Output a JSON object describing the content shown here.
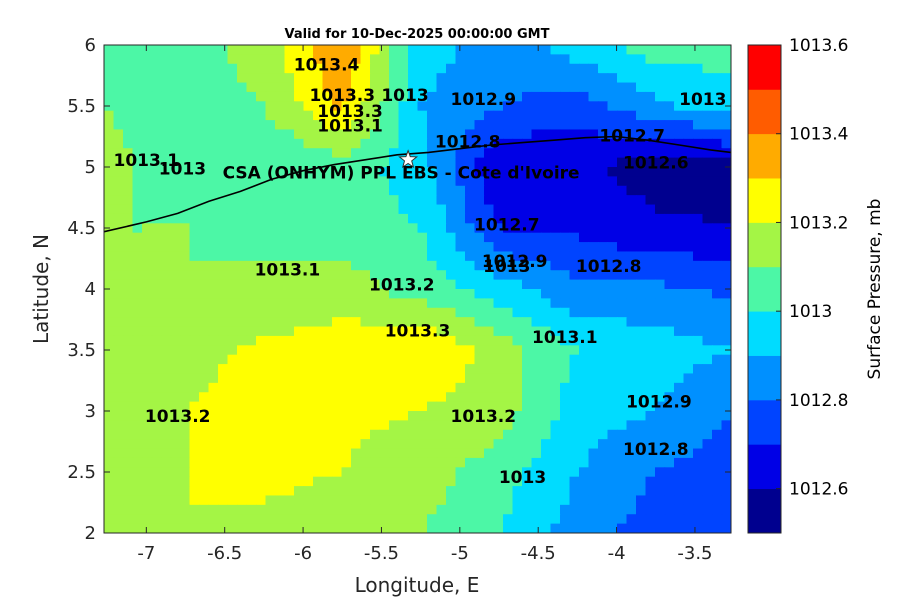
{
  "chart_data": {
    "type": "heatmap",
    "subtype": "filled-contour-map",
    "title": "Valid for 10-Dec-2025 00:00:00 GMT",
    "xlabel": "Longitude, E",
    "ylabel": "Latitude, N",
    "xlim": [
      -7.27,
      -3.27
    ],
    "ylim": [
      2,
      6
    ],
    "xticks": [
      -7,
      -6.5,
      -6,
      -5.5,
      -5,
      -4.5,
      -4,
      -3.5
    ],
    "xtick_labels": [
      "-7",
      "-6.5",
      "-6",
      "-5.5",
      "-5",
      "-4.5",
      "-4",
      "-3.5"
    ],
    "yticks": [
      2,
      2.5,
      3,
      3.5,
      4,
      4.5,
      5,
      5.5,
      6
    ],
    "ytick_labels": [
      "2",
      "2.5",
      "3",
      "3.5",
      "4",
      "4.5",
      "5",
      "5.5",
      "6"
    ],
    "colorbar": {
      "label": "Surface Pressure, mb",
      "range": [
        1012.5,
        1013.6
      ],
      "ticks": [
        1012.6,
        1012.8,
        1013,
        1013.2,
        1013.4,
        1013.6
      ],
      "tick_labels": [
        "1012.6",
        "1012.8",
        "1013",
        "1013.2",
        "1013.4",
        "1013.6"
      ],
      "levels": [
        1012.5,
        1012.6,
        1012.7,
        1012.8,
        1012.9,
        1013.0,
        1013.1,
        1013.2,
        1013.3,
        1013.4,
        1013.5,
        1013.6
      ],
      "colors": [
        "#00008f",
        "#0000e6",
        "#0044ff",
        "#0090ff",
        "#00dcff",
        "#4cf7a6",
        "#a4f545",
        "#ffff00",
        "#ffab00",
        "#ff5c00",
        "#ff0000",
        "#b30000"
      ]
    },
    "pressure_field": {
      "description": "Estimated surface pressure (mb) on a regular grid; rows run north to south",
      "lons": [
        -7.25,
        -6.75,
        -6.25,
        -5.75,
        -5.25,
        -4.75,
        -4.25,
        -3.75,
        -3.25
      ],
      "lats": [
        6,
        5.5,
        5,
        4.5,
        4,
        3.5,
        3,
        2.5,
        2
      ],
      "values": [
        [
          1013.02,
          1013.05,
          1013.15,
          1013.4,
          1012.95,
          1012.85,
          1012.95,
          1013.05,
          1013.05
        ],
        [
          1013.1,
          1013.05,
          1013.1,
          1013.32,
          1012.9,
          1012.8,
          1012.75,
          1012.88,
          1012.95
        ],
        [
          1013.12,
          1013.06,
          1013.0,
          1013.05,
          1012.95,
          1012.6,
          1012.62,
          1012.55,
          1012.55
        ],
        [
          1013.1,
          1013.1,
          1013.08,
          1013.05,
          1013.0,
          1012.7,
          1012.68,
          1012.62,
          1012.6
        ],
        [
          1013.15,
          1013.1,
          1013.12,
          1013.15,
          1013.05,
          1012.95,
          1012.82,
          1012.82,
          1012.78
        ],
        [
          1013.2,
          1013.15,
          1013.22,
          1013.25,
          1013.3,
          1013.15,
          1013.0,
          1012.95,
          1012.9
        ],
        [
          1013.15,
          1013.2,
          1013.28,
          1013.22,
          1013.2,
          1013.15,
          1012.95,
          1012.9,
          1012.8
        ],
        [
          1013.1,
          1013.2,
          1013.22,
          1013.2,
          1013.15,
          1013.05,
          1012.9,
          1012.8,
          1012.75
        ],
        [
          1013.15,
          1013.2,
          1013.18,
          1013.15,
          1013.1,
          1013.0,
          1012.85,
          1012.75,
          1012.7
        ]
      ]
    },
    "contour_labels": [
      {
        "text": "1013.4",
        "lon": -5.85,
        "lat": 5.83
      },
      {
        "text": "1013.3",
        "lon": -5.75,
        "lat": 5.58
      },
      {
        "text": "1013.3",
        "lon": -5.7,
        "lat": 5.45
      },
      {
        "text": "1013.1",
        "lon": -5.7,
        "lat": 5.33
      },
      {
        "text": "1013",
        "lon": -5.35,
        "lat": 5.58
      },
      {
        "text": "1012.9",
        "lon": -4.85,
        "lat": 5.55
      },
      {
        "text": "1012.8",
        "lon": -4.95,
        "lat": 5.2
      },
      {
        "text": "1012.7",
        "lon": -3.9,
        "lat": 5.25
      },
      {
        "text": "1012.6",
        "lon": -3.75,
        "lat": 5.03
      },
      {
        "text": "1013",
        "lon": -3.45,
        "lat": 5.55
      },
      {
        "text": "1013.1",
        "lon": -7.0,
        "lat": 5.05
      },
      {
        "text": "1013",
        "lon": -6.77,
        "lat": 4.98
      },
      {
        "text": "1012.7",
        "lon": -4.7,
        "lat": 4.52
      },
      {
        "text": "1012.9",
        "lon": -4.65,
        "lat": 4.22
      },
      {
        "text": "1013",
        "lon": -4.7,
        "lat": 4.18
      },
      {
        "text": "1012.8",
        "lon": -4.05,
        "lat": 4.18
      },
      {
        "text": "1013.1",
        "lon": -6.1,
        "lat": 4.15
      },
      {
        "text": "1013.2",
        "lon": -5.37,
        "lat": 4.03
      },
      {
        "text": "1013.3",
        "lon": -5.27,
        "lat": 3.65
      },
      {
        "text": "1013.1",
        "lon": -4.33,
        "lat": 3.6
      },
      {
        "text": "1013.2",
        "lon": -6.8,
        "lat": 2.95
      },
      {
        "text": "1013.2",
        "lon": -4.85,
        "lat": 2.95
      },
      {
        "text": "1013",
        "lon": -4.6,
        "lat": 2.45
      },
      {
        "text": "1012.9",
        "lon": -3.73,
        "lat": 3.07
      },
      {
        "text": "1012.8",
        "lon": -3.75,
        "lat": 2.68
      }
    ],
    "site": {
      "name": "CSA (ONHYM) PPL EBS  - Cote d'Ivoire",
      "lon": -5.33,
      "lat": 5.06,
      "marker": "white-star"
    },
    "coastline": {
      "description": "Cote d'Ivoire coastline (lon, lat) approximate",
      "points": [
        [
          -7.27,
          4.47
        ],
        [
          -7.0,
          4.55
        ],
        [
          -6.8,
          4.62
        ],
        [
          -6.6,
          4.72
        ],
        [
          -6.4,
          4.8
        ],
        [
          -6.2,
          4.9
        ],
        [
          -6.0,
          4.97
        ],
        [
          -5.8,
          5.02
        ],
        [
          -5.6,
          5.06
        ],
        [
          -5.4,
          5.1
        ],
        [
          -5.2,
          5.12
        ],
        [
          -5.0,
          5.15
        ],
        [
          -4.8,
          5.18
        ],
        [
          -4.6,
          5.2
        ],
        [
          -4.4,
          5.22
        ],
        [
          -4.2,
          5.24
        ],
        [
          -4.0,
          5.25
        ],
        [
          -3.8,
          5.22
        ],
        [
          -3.6,
          5.18
        ],
        [
          -3.4,
          5.14
        ],
        [
          -3.27,
          5.12
        ]
      ]
    }
  }
}
